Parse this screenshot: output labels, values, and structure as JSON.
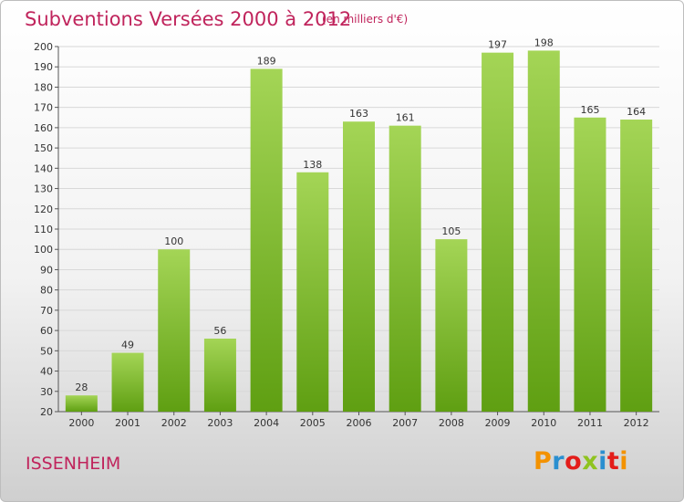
{
  "title": "Subventions Versées 2000 à 2012",
  "unit_note": "(en milliers d'€)",
  "commune": "ISSENHEIM",
  "logo": {
    "text": "Proxiti",
    "colors": [
      "#f39200",
      "#2a8fd0",
      "#e31d1a",
      "#8fc31f",
      "#2a8fd0",
      "#e31d1a",
      "#f39200"
    ]
  },
  "colors": {
    "title": "#c0245c",
    "bar_light": "#a4d556",
    "bar_dark": "#5f9f12",
    "grid": "#d8d8d8"
  },
  "chart_data": {
    "type": "bar",
    "categories": [
      "2000",
      "2001",
      "2002",
      "2003",
      "2004",
      "2005",
      "2006",
      "2007",
      "2008",
      "2009",
      "2010",
      "2011",
      "2012"
    ],
    "values": [
      28,
      49,
      100,
      56,
      189,
      138,
      163,
      161,
      105,
      197,
      198,
      165,
      164
    ],
    "ylim": [
      20,
      200
    ],
    "yticks": [
      20,
      30,
      40,
      50,
      60,
      70,
      80,
      90,
      100,
      110,
      120,
      130,
      140,
      150,
      160,
      170,
      180,
      190,
      200
    ],
    "grid": true,
    "data_labels": true
  }
}
